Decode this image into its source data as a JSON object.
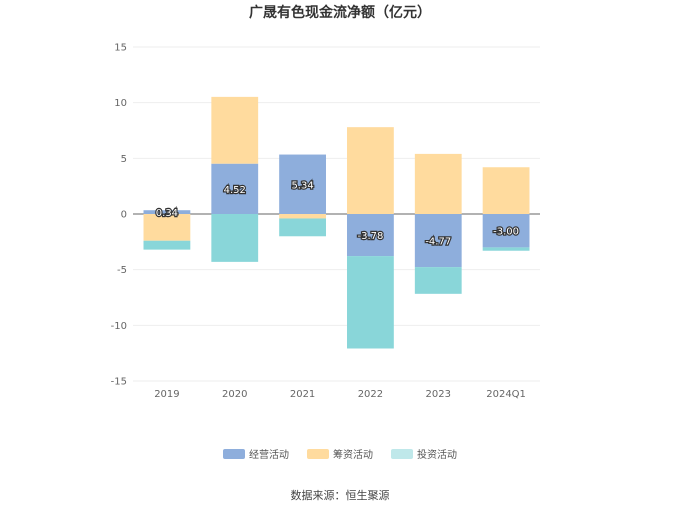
{
  "chart_data": {
    "type": "bar",
    "stacked": true,
    "title": "广晟有色现金流净额（亿元）",
    "categories": [
      "2019",
      "2020",
      "2021",
      "2022",
      "2023",
      "2024Q1"
    ],
    "ylim": [
      -15,
      15
    ],
    "yticks": [
      15,
      10,
      5,
      0,
      -5,
      -10,
      -15
    ],
    "grid": true,
    "legend_position": "bottom",
    "series": [
      {
        "name": "经营活动",
        "color": "#8eaedc",
        "values": [
          0.34,
          4.52,
          5.34,
          -3.78,
          -4.77,
          -3.0
        ]
      },
      {
        "name": "筹资活动",
        "color": "#ffdb9e",
        "values": [
          -2.4,
          6.0,
          -0.4,
          7.8,
          5.4,
          4.2
        ]
      },
      {
        "name": "投资活动",
        "color": "#89d6d9",
        "values": [
          -0.8,
          -4.3,
          -1.6,
          -8.3,
          -2.4,
          -0.3
        ]
      }
    ],
    "data_labels": [
      "0.34",
      "4.52",
      "5.34",
      "-3.78",
      "-4.77",
      "-3.00"
    ]
  },
  "legend": [
    {
      "label": "经营活动",
      "color": "#8eaedc"
    },
    {
      "label": "筹资活动",
      "color": "#ffdb9e"
    },
    {
      "label": "投资活动",
      "color": "#bfe8ea"
    }
  ],
  "source_text": "数据来源：恒生聚源"
}
